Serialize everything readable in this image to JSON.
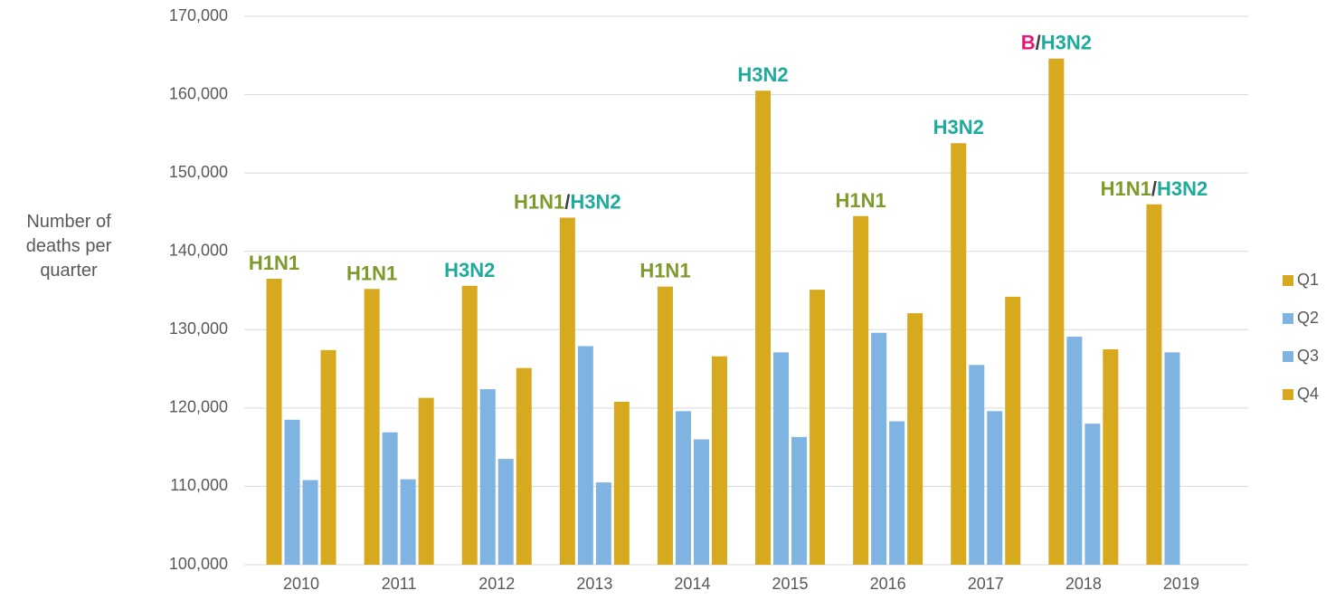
{
  "chart_data": {
    "type": "bar",
    "y_label": "Number of deaths per quarter",
    "categories": [
      "2010",
      "2011",
      "2012",
      "2013",
      "2014",
      "2015",
      "2016",
      "2017",
      "2018",
      "2019"
    ],
    "series": [
      {
        "name": "Q1",
        "color": "#d6a91f",
        "values": [
          136500,
          135200,
          135600,
          144300,
          135500,
          160500,
          144500,
          153800,
          164600,
          146000
        ]
      },
      {
        "name": "Q2",
        "color": "#7fb3e1",
        "values": [
          118500,
          116900,
          122400,
          127900,
          119600,
          127100,
          129600,
          125500,
          129100,
          127100
        ]
      },
      {
        "name": "Q3",
        "color": "#7fb3e1",
        "values": [
          110800,
          110900,
          113500,
          110500,
          116000,
          116300,
          118300,
          119600,
          118000,
          null
        ]
      },
      {
        "name": "Q4",
        "color": "#d6a91f",
        "values": [
          127400,
          121300,
          125100,
          120800,
          126600,
          135100,
          132100,
          134200,
          127500,
          null
        ]
      }
    ],
    "annotations": [
      [
        {
          "text": "H1N1",
          "color": "#7d9b2b"
        }
      ],
      [
        {
          "text": "H1N1",
          "color": "#7d9b2b"
        }
      ],
      [
        {
          "text": "H3N2",
          "color": "#1fab9c"
        }
      ],
      [
        {
          "text": "H1N1",
          "color": "#7d9b2b"
        },
        {
          "text": "/",
          "color": "#404040"
        },
        {
          "text": "H3N2",
          "color": "#1fab9c"
        }
      ],
      [
        {
          "text": "H1N1",
          "color": "#7d9b2b"
        }
      ],
      [
        {
          "text": "H3N2",
          "color": "#1fab9c"
        }
      ],
      [
        {
          "text": "H1N1",
          "color": "#7d9b2b"
        }
      ],
      [
        {
          "text": "H3N2",
          "color": "#1fab9c"
        }
      ],
      [
        {
          "text": "B",
          "color": "#e5177b"
        },
        {
          "text": "/",
          "color": "#404040"
        },
        {
          "text": "H3N2",
          "color": "#1fab9c"
        }
      ],
      [
        {
          "text": "H1N1",
          "color": "#7d9b2b"
        },
        {
          "text": "/",
          "color": "#404040"
        },
        {
          "text": "H3N2",
          "color": "#1fab9c"
        }
      ]
    ],
    "ylim": [
      100000,
      170000
    ],
    "yticks": [
      {
        "value": 100000,
        "label": "100,000"
      },
      {
        "value": 110000,
        "label": "110,000"
      },
      {
        "value": 120000,
        "label": "120,000"
      },
      {
        "value": 130000,
        "label": "130,000"
      },
      {
        "value": 140000,
        "label": "140,000"
      },
      {
        "value": 150000,
        "label": "150,000"
      },
      {
        "value": 160000,
        "label": "160,000"
      },
      {
        "value": 170000,
        "label": "170,000"
      }
    ],
    "grid": true,
    "legend": "right"
  }
}
